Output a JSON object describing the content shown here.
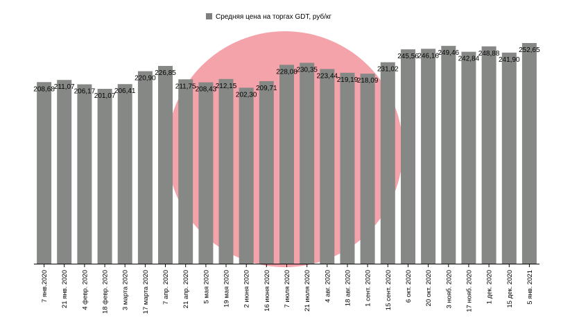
{
  "chart_data": {
    "type": "bar",
    "legend": {
      "label": "Средняя цена на торгах GDT, руб/кг",
      "placement": "top-center"
    },
    "categories": [
      "7 янв.2020",
      "21 янв. 2020",
      "4 февр. 2020",
      "18 февр. 2020",
      "3 марта 2020",
      "17 марта 2020",
      "7 апр. 2020",
      "21 апр. 2020",
      "5 мая 2020",
      "19 мая 2020",
      "2 июня 2020",
      "16 июня 2020",
      "7 июля 2020",
      "21 июля 2020",
      "4 авг. 2020",
      "18 авг. 2020",
      "1 сент. 2020",
      "15 сент. 2020",
      "6 окт. 2020",
      "20 окт. 2020",
      "3 нояб. 2020",
      "17 нояб. 2020",
      "1 дек. 2020",
      "15 дек. 2020",
      "5 янв. 2021"
    ],
    "series": [
      {
        "name": "Средняя цена на торгах GDT, руб/кг",
        "values": [
          208.68,
          211.07,
          206.17,
          201.07,
          206.41,
          220.9,
          226.85,
          211.75,
          208.43,
          212.15,
          202.3,
          209.71,
          228.08,
          230.35,
          223.44,
          219.19,
          218.09,
          231.02,
          245.56,
          246.16,
          249.46,
          242.84,
          248.88,
          241.9,
          252.65
        ],
        "labels": [
          "208,68",
          "211,07",
          "206,17",
          "201,07",
          "206,41",
          "220,90",
          "226,85",
          "211,75",
          "208,43",
          "212,15",
          "202,30",
          "209,71",
          "228,08",
          "230,35",
          "223,44",
          "219,19",
          "218,09",
          "231,02",
          "245,56",
          "246,16",
          "249,46",
          "242,84",
          "248,88",
          "241,90",
          "252,65"
        ]
      }
    ],
    "colors": {
      "bar": "#858885",
      "legend_swatch": "#7f7f7f",
      "watermark": "#f4a3aa"
    },
    "grid": false
  }
}
